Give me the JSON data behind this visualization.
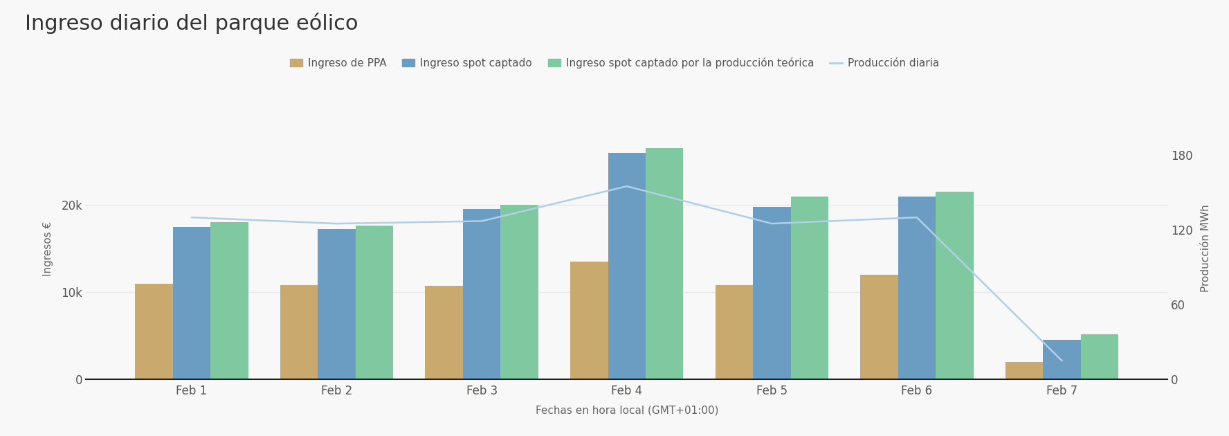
{
  "title": "Ingreso diario del parque eólico",
  "xlabel": "Fechas en hora local (GMT+01:00)",
  "ylabel_left": "Ingresos €",
  "ylabel_right": "Producción MWh",
  "categories": [
    "Feb 1",
    "Feb 2",
    "Feb 3",
    "Feb 4",
    "Feb 5",
    "Feb 6",
    "Feb 7"
  ],
  "ppa": [
    11000,
    10800,
    10700,
    13500,
    10800,
    12000,
    2000
  ],
  "spot_captado": [
    17500,
    17200,
    19500,
    26000,
    19800,
    21000,
    4500
  ],
  "spot_teorico": [
    18000,
    17600,
    20000,
    26500,
    21000,
    21500,
    5200
  ],
  "produccion_diaria": [
    130,
    125,
    127,
    155,
    125,
    130,
    15
  ],
  "color_ppa": "#c9a96e",
  "color_spot_captado": "#6b9dc2",
  "color_spot_teorico": "#80c9a0",
  "color_line": "#b0cfe8",
  "ylim_left": [
    0,
    30000
  ],
  "ylim_right": [
    0,
    210
  ],
  "yticks_left": [
    0,
    10000,
    20000
  ],
  "yticks_right": [
    0,
    60,
    120,
    180
  ],
  "title_fontsize": 22,
  "label_fontsize": 11,
  "tick_fontsize": 12,
  "legend_fontsize": 11,
  "background_color": "#f8f8f8",
  "grid_color": "#e8e8e8"
}
